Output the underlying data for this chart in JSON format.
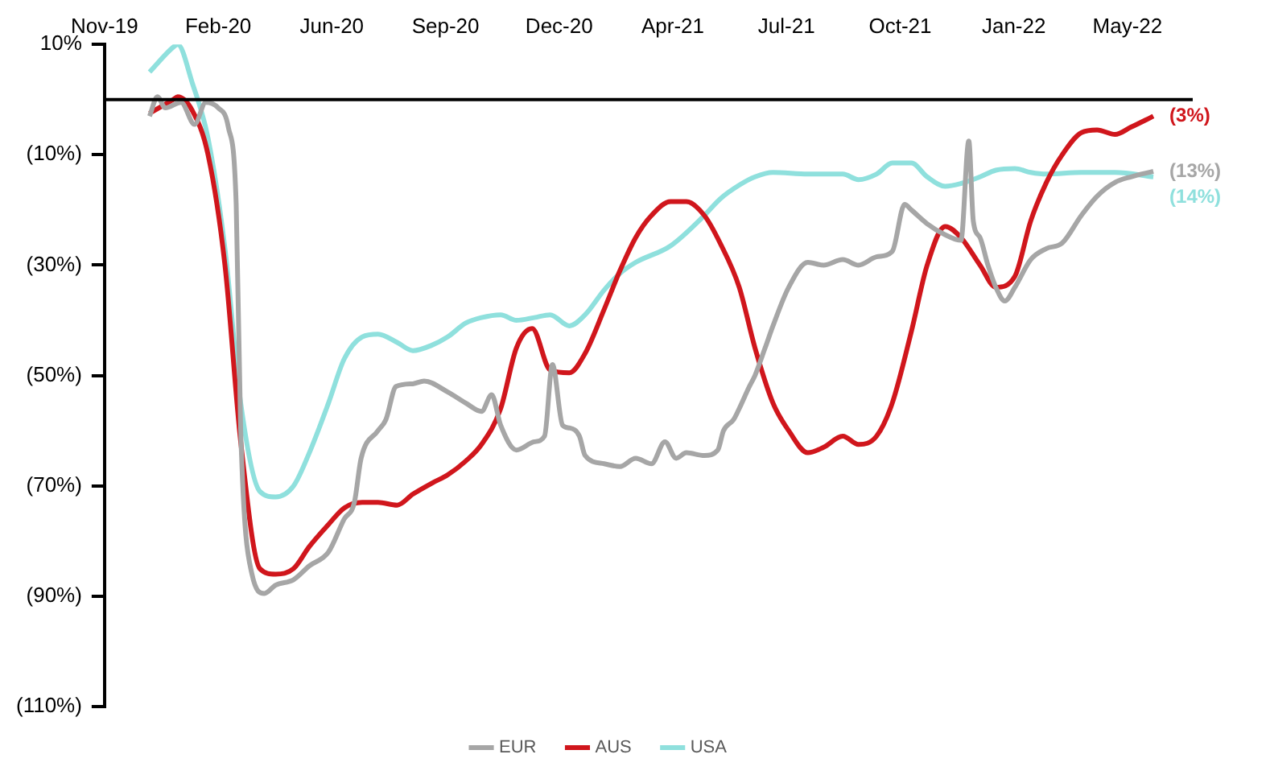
{
  "chart_data": {
    "type": "line",
    "xlim": [
      "2019-11-15",
      "2022-07-09"
    ],
    "xticks": [
      {
        "value": "2019-11-15",
        "label": "Nov-19"
      },
      {
        "value": "2020-02-24",
        "label": "Feb-20"
      },
      {
        "value": "2020-06-04",
        "label": "Jun-20"
      },
      {
        "value": "2020-09-13",
        "label": "Sep-20"
      },
      {
        "value": "2020-12-23",
        "label": "Dec-20"
      },
      {
        "value": "2021-04-03",
        "label": "Apr-21"
      },
      {
        "value": "2021-07-13",
        "label": "Jul-21"
      },
      {
        "value": "2021-10-22",
        "label": "Oct-21"
      },
      {
        "value": "2022-01-31",
        "label": "Jan-22"
      },
      {
        "value": "2022-05-12",
        "label": "May-22"
      }
    ],
    "ylim": [
      -110,
      10
    ],
    "yticks": [
      {
        "value": 10,
        "label": "10%"
      },
      {
        "value": -10,
        "label": "(10%)"
      },
      {
        "value": -30,
        "label": "(30%)"
      },
      {
        "value": -50,
        "label": "(50%)"
      },
      {
        "value": -70,
        "label": "(70%)"
      },
      {
        "value": -90,
        "label": "(90%)"
      },
      {
        "value": -110,
        "label": "(110%)"
      }
    ],
    "grid": false,
    "legend": "bottom",
    "ref_lines": [
      {
        "axis": "y",
        "value": 0,
        "color": "#000000"
      }
    ],
    "annotations": [
      {
        "text": "(13%)",
        "x": "2022-06-04",
        "y": -13
      },
      {
        "text": "(3%)",
        "x": "2022-06-04",
        "y": -3
      },
      {
        "text": "(14%)",
        "x": "2022-06-04",
        "y": -14
      }
    ],
    "series": [
      {
        "name": "EUR",
        "color": "#a6a6a6",
        "x": [
          "2019-12-25",
          "2020-01-01",
          "2020-01-08",
          "2020-01-22",
          "2020-02-03",
          "2020-02-13",
          "2020-02-24",
          "2020-03-04",
          "2020-03-11",
          "2020-03-15",
          "2020-03-25",
          "2020-04-05",
          "2020-04-15",
          "2020-05-01",
          "2020-05-15",
          "2020-06-01",
          "2020-06-15",
          "2020-06-24",
          "2020-06-30",
          "2020-07-15",
          "2020-07-22",
          "2020-07-31",
          "2020-08-15",
          "2020-08-25",
          "2020-09-15",
          "2020-10-01",
          "2020-10-15",
          "2020-10-24",
          "2020-11-01",
          "2020-11-15",
          "2020-12-01",
          "2020-12-10",
          "2020-12-17",
          "2020-12-26",
          "2021-01-01",
          "2021-01-10",
          "2021-01-15",
          "2021-02-01",
          "2021-02-15",
          "2021-03-01",
          "2021-03-15",
          "2021-03-27",
          "2021-04-06",
          "2021-04-15",
          "2021-05-01",
          "2021-05-13",
          "2021-05-18",
          "2021-05-27",
          "2021-06-01",
          "2021-06-10",
          "2021-06-15",
          "2021-06-24",
          "2021-07-01",
          "2021-07-15",
          "2021-08-01",
          "2021-08-15",
          "2021-09-01",
          "2021-09-15",
          "2021-10-01",
          "2021-10-15",
          "2021-10-26",
          "2021-11-01",
          "2021-11-15",
          "2021-12-01",
          "2021-12-15",
          "2021-12-22",
          "2021-12-26",
          "2022-01-01",
          "2022-01-08",
          "2022-01-15",
          "2022-01-23",
          "2022-02-01",
          "2022-02-15",
          "2022-03-01",
          "2022-03-15",
          "2022-04-01",
          "2022-04-15",
          "2022-05-01",
          "2022-05-15",
          "2022-06-04"
        ],
        "values": [
          -3,
          0.5,
          -1.5,
          -0.5,
          -4.5,
          -0.5,
          -1.5,
          -5,
          -19,
          -60,
          -86,
          -89.5,
          -88,
          -87,
          -84.5,
          -82,
          -76,
          -73,
          -65,
          -60,
          -58,
          -52,
          -51.5,
          -51,
          -53,
          -55,
          -56.5,
          -53.5,
          -59,
          -63.5,
          -62,
          -61,
          -48,
          -59,
          -59.5,
          -61,
          -64.5,
          -66,
          -66.5,
          -65,
          -66,
          -62,
          -65,
          -64,
          -64.5,
          -63.5,
          -60,
          -58,
          -56,
          -52,
          -50,
          -45,
          -41,
          -34,
          -29.5,
          -30,
          -29,
          -30,
          -28.5,
          -27.5,
          -19,
          -20,
          -22.5,
          -24.5,
          -25.5,
          -7.5,
          -22,
          -25,
          -30,
          -34,
          -36.5,
          -34,
          -29,
          -27,
          -26,
          -21,
          -17.5,
          -15,
          -14,
          -13
        ]
      },
      {
        "name": "AUS",
        "color": "#d0161c",
        "x": [
          "2019-12-25",
          "2020-01-15",
          "2020-01-19",
          "2020-02-01",
          "2020-02-15",
          "2020-03-01",
          "2020-03-15",
          "2020-04-01",
          "2020-04-15",
          "2020-05-01",
          "2020-05-15",
          "2020-06-01",
          "2020-06-15",
          "2020-07-01",
          "2020-07-15",
          "2020-08-01",
          "2020-08-15",
          "2020-09-01",
          "2020-09-15",
          "2020-10-01",
          "2020-10-15",
          "2020-11-01",
          "2020-11-15",
          "2020-11-29",
          "2020-12-15",
          "2021-01-01",
          "2021-01-15",
          "2021-02-01",
          "2021-02-15",
          "2021-03-01",
          "2021-03-15",
          "2021-04-01",
          "2021-04-15",
          "2021-05-01",
          "2021-05-15",
          "2021-06-01",
          "2021-06-15",
          "2021-07-01",
          "2021-07-15",
          "2021-08-01",
          "2021-08-15",
          "2021-09-01",
          "2021-09-15",
          "2021-10-01",
          "2021-10-15",
          "2021-11-01",
          "2021-11-15",
          "2021-12-01",
          "2021-12-15",
          "2022-01-01",
          "2022-01-15",
          "2022-02-01",
          "2022-02-15",
          "2022-03-01",
          "2022-03-15",
          "2022-04-01",
          "2022-04-15",
          "2022-05-01",
          "2022-05-15",
          "2022-06-04"
        ],
        "values": [
          -2.5,
          0,
          0.5,
          -2,
          -10,
          -30,
          -62,
          -85,
          -86,
          -85,
          -81,
          -77,
          -74,
          -73,
          -73,
          -73.5,
          -71.5,
          -69.5,
          -68,
          -65.5,
          -62.5,
          -56,
          -45,
          -41.5,
          -49,
          -49.5,
          -46,
          -38,
          -31,
          -25,
          -21,
          -18.5,
          -18.5,
          -21,
          -26,
          -34,
          -45,
          -55,
          -60,
          -64,
          -63,
          -61,
          -62.5,
          -61,
          -55,
          -42,
          -30,
          -23,
          -25,
          -30,
          -34,
          -32,
          -22,
          -15,
          -10,
          -6,
          -5.5,
          -6.3,
          -5,
          -3
        ]
      },
      {
        "name": "USA",
        "color": "#8fe0dd",
        "x": [
          "2019-12-25",
          "2020-01-15",
          "2020-01-19",
          "2020-02-01",
          "2020-02-15",
          "2020-03-01",
          "2020-03-15",
          "2020-04-01",
          "2020-04-15",
          "2020-05-01",
          "2020-05-15",
          "2020-06-01",
          "2020-06-15",
          "2020-07-01",
          "2020-07-15",
          "2020-08-01",
          "2020-08-15",
          "2020-09-01",
          "2020-09-15",
          "2020-10-01",
          "2020-10-15",
          "2020-11-01",
          "2020-11-15",
          "2020-12-01",
          "2020-12-15",
          "2021-01-01",
          "2021-01-15",
          "2021-02-01",
          "2021-02-15",
          "2021-03-01",
          "2021-04-01",
          "2021-05-01",
          "2021-05-15",
          "2021-06-01",
          "2021-06-15",
          "2021-07-01",
          "2021-08-01",
          "2021-09-01",
          "2021-09-15",
          "2021-10-01",
          "2021-10-15",
          "2021-11-01",
          "2021-11-15",
          "2021-12-01",
          "2021-12-15",
          "2022-01-01",
          "2022-01-15",
          "2022-02-01",
          "2022-02-15",
          "2022-03-01",
          "2022-04-01",
          "2022-05-01",
          "2022-06-04"
        ],
        "values": [
          5,
          9.5,
          10,
          3,
          -7,
          -27,
          -55,
          -71,
          -72,
          -70,
          -64,
          -55,
          -47,
          -43,
          -42.5,
          -44,
          -45.5,
          -44.5,
          -43,
          -40.5,
          -39.5,
          -39,
          -40,
          -39.5,
          -39,
          -41,
          -39,
          -34.5,
          -31.5,
          -29.5,
          -26.5,
          -21,
          -18,
          -15.5,
          -14,
          -13.2,
          -13.5,
          -13.5,
          -14.5,
          -13.5,
          -11.5,
          -11.5,
          -14,
          -15.7,
          -15.2,
          -14,
          -12.8,
          -12.5,
          -13.2,
          -13.5,
          -13.2,
          -13.2,
          -14
        ]
      }
    ]
  }
}
